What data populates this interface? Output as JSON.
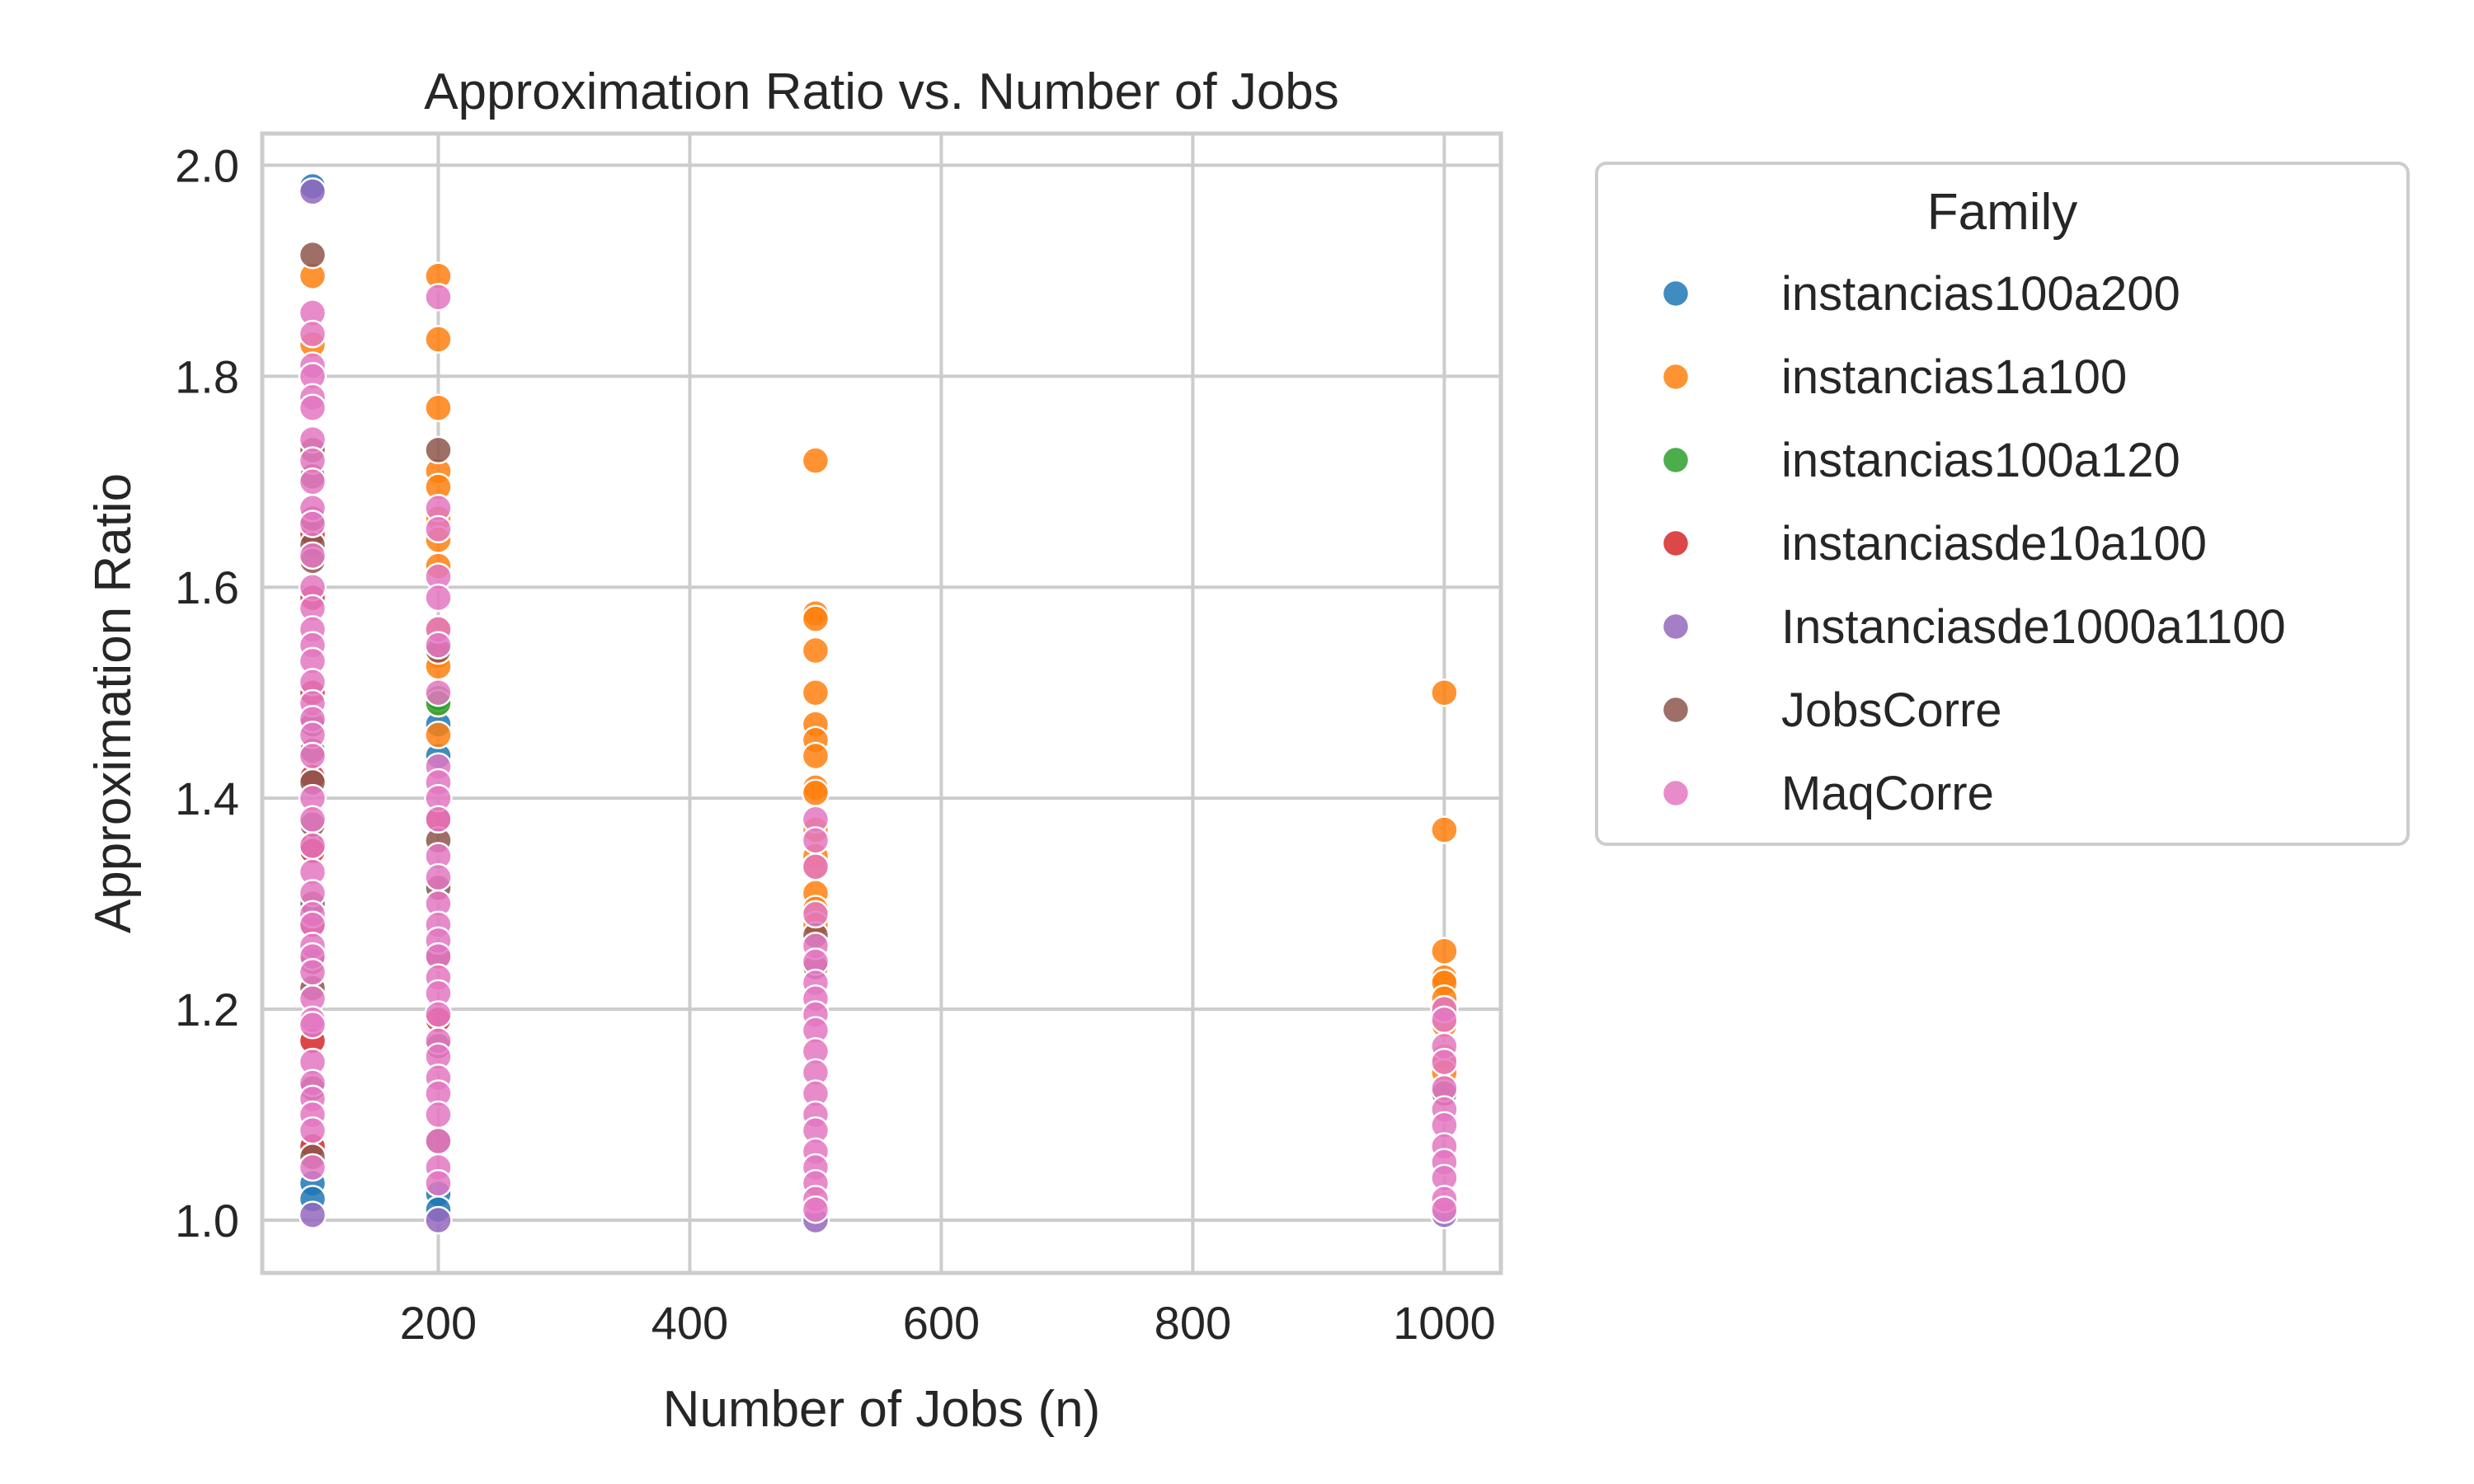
{
  "chart_data": {
    "type": "scatter",
    "title": "Approximation Ratio vs. Number of Jobs",
    "xlabel": "Number of Jobs (n)",
    "ylabel": "Approximation Ratio",
    "xlim": [
      60,
      1045
    ],
    "ylim": [
      0.95,
      2.03
    ],
    "xticks": [
      200,
      400,
      600,
      800,
      1000
    ],
    "yticks": [
      1.0,
      1.2,
      1.4,
      1.6,
      1.8,
      2.0
    ],
    "xtick_labels": [
      "200",
      "400",
      "600",
      "800",
      "1000"
    ],
    "ytick_labels": [
      "1.0",
      "1.2",
      "1.4",
      "1.6",
      "1.8",
      "2.0"
    ],
    "grid": true,
    "legend": {
      "title": "Family",
      "placement": "outside-right"
    },
    "series": [
      {
        "name": "instancias100a200",
        "color": "#1f77b4",
        "points": [
          [
            100,
            1.98
          ],
          [
            100,
            1.035
          ],
          [
            100,
            1.02
          ],
          [
            200,
            1.47
          ],
          [
            200,
            1.44
          ],
          [
            200,
            1.025
          ],
          [
            200,
            1.01
          ]
        ]
      },
      {
        "name": "instancias1a100",
        "color": "#ff7f0e",
        "points": [
          [
            100,
            1.895
          ],
          [
            100,
            1.83
          ],
          [
            200,
            1.895
          ],
          [
            200,
            1.835
          ],
          [
            200,
            1.77
          ],
          [
            200,
            1.71
          ],
          [
            200,
            1.695
          ],
          [
            200,
            1.665
          ],
          [
            200,
            1.645
          ],
          [
            200,
            1.62
          ],
          [
            200,
            1.56
          ],
          [
            200,
            1.535
          ],
          [
            200,
            1.525
          ],
          [
            200,
            1.49
          ],
          [
            200,
            1.46
          ],
          [
            500,
            1.72
          ],
          [
            500,
            1.575
          ],
          [
            500,
            1.57
          ],
          [
            500,
            1.54
          ],
          [
            500,
            1.5
          ],
          [
            500,
            1.47
          ],
          [
            500,
            1.455
          ],
          [
            500,
            1.44
          ],
          [
            500,
            1.41
          ],
          [
            500,
            1.405
          ],
          [
            500,
            1.37
          ],
          [
            500,
            1.345
          ],
          [
            500,
            1.335
          ],
          [
            500,
            1.31
          ],
          [
            500,
            1.295
          ],
          [
            500,
            1.28
          ],
          [
            1000,
            1.5
          ],
          [
            1000,
            1.37
          ],
          [
            1000,
            1.255
          ],
          [
            1000,
            1.23
          ],
          [
            1000,
            1.225
          ],
          [
            1000,
            1.21
          ],
          [
            1000,
            1.2
          ],
          [
            1000,
            1.185
          ],
          [
            1000,
            1.155
          ],
          [
            1000,
            1.14
          ]
        ]
      },
      {
        "name": "instancias100a120",
        "color": "#2ca02c",
        "points": [
          [
            200,
            1.495
          ],
          [
            200,
            1.49
          ]
        ]
      },
      {
        "name": "instanciasde10a100",
        "color": "#d62728",
        "points": [
          [
            100,
            1.65
          ],
          [
            100,
            1.59
          ],
          [
            100,
            1.5
          ],
          [
            100,
            1.42
          ],
          [
            100,
            1.355
          ],
          [
            100,
            1.35
          ],
          [
            100,
            1.28
          ],
          [
            100,
            1.17
          ],
          [
            100,
            1.07
          ],
          [
            200,
            1.38
          ],
          [
            200,
            1.19
          ]
        ]
      },
      {
        "name": "Instanciasde1000a1100",
        "color": "#9467bd",
        "points": [
          [
            100,
            1.975
          ],
          [
            100,
            1.005
          ],
          [
            200,
            1.0
          ],
          [
            500,
            1.0
          ],
          [
            1000,
            1.005
          ]
        ]
      },
      {
        "name": "JobsCorre",
        "color": "#8c564b",
        "points": [
          [
            100,
            1.915
          ],
          [
            100,
            1.73
          ],
          [
            100,
            1.705
          ],
          [
            100,
            1.665
          ],
          [
            100,
            1.64
          ],
          [
            100,
            1.625
          ],
          [
            100,
            1.47
          ],
          [
            100,
            1.445
          ],
          [
            100,
            1.415
          ],
          [
            100,
            1.375
          ],
          [
            100,
            1.3
          ],
          [
            100,
            1.245
          ],
          [
            100,
            1.22
          ],
          [
            100,
            1.125
          ],
          [
            100,
            1.06
          ],
          [
            200,
            1.73
          ],
          [
            200,
            1.54
          ],
          [
            200,
            1.36
          ],
          [
            200,
            1.315
          ],
          [
            200,
            1.25
          ],
          [
            200,
            1.165
          ],
          [
            200,
            1.075
          ],
          [
            500,
            1.27
          ],
          [
            500,
            1.24
          ],
          [
            1000,
            1.12
          ]
        ]
      },
      {
        "name": "MaqCorre",
        "color": "#e377c2",
        "points": [
          [
            100,
            1.86
          ],
          [
            100,
            1.84
          ],
          [
            100,
            1.81
          ],
          [
            100,
            1.8
          ],
          [
            100,
            1.78
          ],
          [
            100,
            1.77
          ],
          [
            100,
            1.74
          ],
          [
            100,
            1.72
          ],
          [
            100,
            1.7
          ],
          [
            100,
            1.675
          ],
          [
            100,
            1.66
          ],
          [
            100,
            1.63
          ],
          [
            100,
            1.6
          ],
          [
            100,
            1.58
          ],
          [
            100,
            1.56
          ],
          [
            100,
            1.545
          ],
          [
            100,
            1.53
          ],
          [
            100,
            1.51
          ],
          [
            100,
            1.49
          ],
          [
            100,
            1.475
          ],
          [
            100,
            1.46
          ],
          [
            100,
            1.44
          ],
          [
            100,
            1.4
          ],
          [
            100,
            1.38
          ],
          [
            100,
            1.355
          ],
          [
            100,
            1.33
          ],
          [
            100,
            1.31
          ],
          [
            100,
            1.29
          ],
          [
            100,
            1.28
          ],
          [
            100,
            1.26
          ],
          [
            100,
            1.25
          ],
          [
            100,
            1.235
          ],
          [
            100,
            1.21
          ],
          [
            100,
            1.19
          ],
          [
            100,
            1.185
          ],
          [
            100,
            1.15
          ],
          [
            100,
            1.13
          ],
          [
            100,
            1.115
          ],
          [
            100,
            1.1
          ],
          [
            100,
            1.085
          ],
          [
            100,
            1.05
          ],
          [
            200,
            1.875
          ],
          [
            200,
            1.675
          ],
          [
            200,
            1.655
          ],
          [
            200,
            1.61
          ],
          [
            200,
            1.59
          ],
          [
            200,
            1.56
          ],
          [
            200,
            1.545
          ],
          [
            200,
            1.5
          ],
          [
            200,
            1.43
          ],
          [
            200,
            1.415
          ],
          [
            200,
            1.4
          ],
          [
            200,
            1.38
          ],
          [
            200,
            1.345
          ],
          [
            200,
            1.325
          ],
          [
            200,
            1.3
          ],
          [
            200,
            1.28
          ],
          [
            200,
            1.265
          ],
          [
            200,
            1.25
          ],
          [
            200,
            1.23
          ],
          [
            200,
            1.215
          ],
          [
            200,
            1.195
          ],
          [
            200,
            1.17
          ],
          [
            200,
            1.155
          ],
          [
            200,
            1.135
          ],
          [
            200,
            1.12
          ],
          [
            200,
            1.1
          ],
          [
            200,
            1.075
          ],
          [
            200,
            1.05
          ],
          [
            200,
            1.035
          ],
          [
            500,
            1.38
          ],
          [
            500,
            1.36
          ],
          [
            500,
            1.335
          ],
          [
            500,
            1.29
          ],
          [
            500,
            1.26
          ],
          [
            500,
            1.245
          ],
          [
            500,
            1.225
          ],
          [
            500,
            1.21
          ],
          [
            500,
            1.195
          ],
          [
            500,
            1.18
          ],
          [
            500,
            1.16
          ],
          [
            500,
            1.14
          ],
          [
            500,
            1.12
          ],
          [
            500,
            1.1
          ],
          [
            500,
            1.085
          ],
          [
            500,
            1.065
          ],
          [
            500,
            1.05
          ],
          [
            500,
            1.035
          ],
          [
            500,
            1.02
          ],
          [
            500,
            1.01
          ],
          [
            1000,
            1.2
          ],
          [
            1000,
            1.19
          ],
          [
            1000,
            1.165
          ],
          [
            1000,
            1.15
          ],
          [
            1000,
            1.125
          ],
          [
            1000,
            1.105
          ],
          [
            1000,
            1.09
          ],
          [
            1000,
            1.07
          ],
          [
            1000,
            1.055
          ],
          [
            1000,
            1.04
          ],
          [
            1000,
            1.02
          ],
          [
            1000,
            1.01
          ]
        ]
      }
    ]
  }
}
